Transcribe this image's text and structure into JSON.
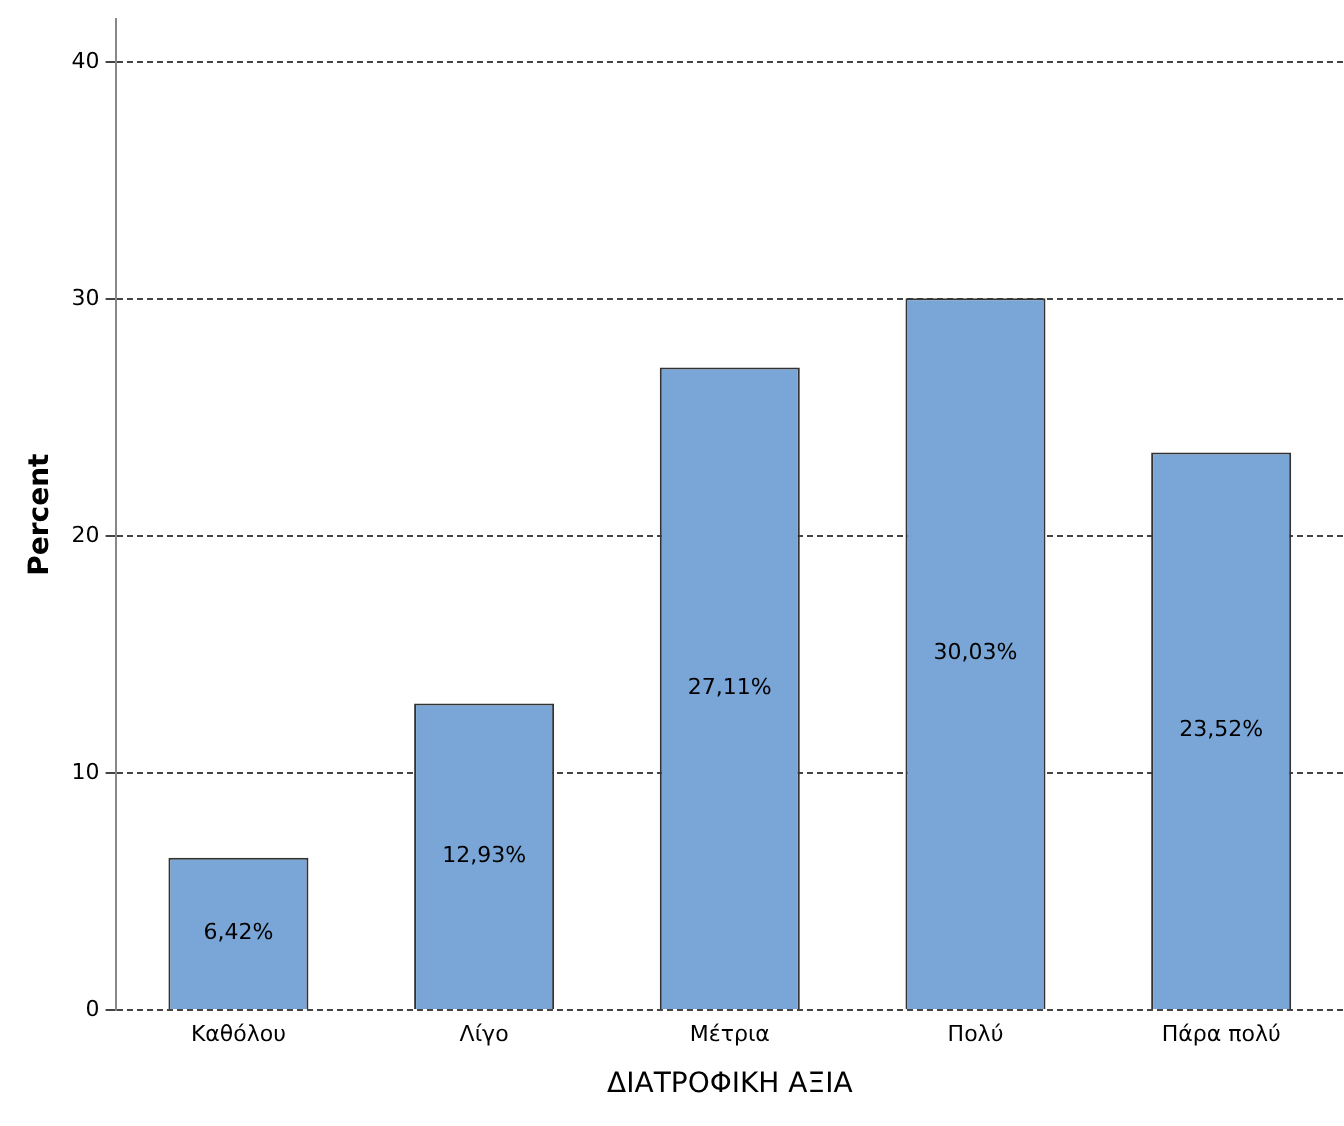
{
  "chart_data": {
    "type": "bar",
    "xlabel": "ΔΙΑΤΡΟΦΙΚΗ ΑΞΙΑ",
    "ylabel": "Percent",
    "categories": [
      "Καθόλου",
      "Λίγο",
      "Μέτρια",
      "Πολύ",
      "Πάρα πολύ"
    ],
    "values": [
      6.42,
      12.93,
      27.11,
      30.03,
      23.52
    ],
    "value_labels": [
      "6,42%",
      "12,93%",
      "27,11%",
      "30,03%",
      "23,52%"
    ],
    "color": "#79a6d6",
    "ylim": [
      0,
      41.8
    ],
    "yticks": [
      0,
      10,
      20,
      30,
      40
    ],
    "grid": "y",
    "legend": false
  }
}
